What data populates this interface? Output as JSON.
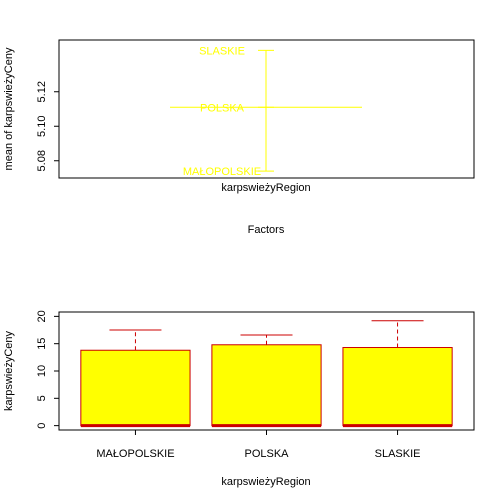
{
  "chart_data": [
    {
      "type": "scatter",
      "subtype": "design-plot",
      "title": "",
      "xlabel": "Factors",
      "ylabel": "mean of karpswieżyCeny",
      "factor_label": "karpswieżyRegion",
      "ylim": [
        5.07,
        5.15
      ],
      "yticks": [
        5.08,
        5.1,
        5.12
      ],
      "ytick_labels": [
        "5.08",
        "5.10",
        "5.12"
      ],
      "grand_mean": 5.111,
      "levels": [
        {
          "label": "SLASKIE",
          "value": 5.144
        },
        {
          "label": "POLSKA",
          "value": 5.111
        },
        {
          "label": "MAŁOPOLSKIE",
          "value": 5.074
        }
      ],
      "color": "#FFFF00"
    },
    {
      "type": "bar",
      "subtype": "bar-with-error-bars",
      "title": "",
      "xlabel": "karpswieżyRegion",
      "ylabel": "karpswieżyCeny",
      "ylim": [
        -0.8,
        20.8
      ],
      "yticks": [
        0,
        5,
        10,
        15,
        20
      ],
      "ytick_labels": [
        "0",
        "5",
        "10",
        "15",
        "20"
      ],
      "categories": [
        "MAŁOPOLSKIE",
        "POLSKA",
        "SLASKIE"
      ],
      "values": [
        13.8,
        14.8,
        14.3
      ],
      "error_upper": [
        17.5,
        16.6,
        19.2
      ],
      "bar_fill": "#FFFF00",
      "bar_border": "#CC0000",
      "baseline_color": "#CC0000"
    }
  ]
}
